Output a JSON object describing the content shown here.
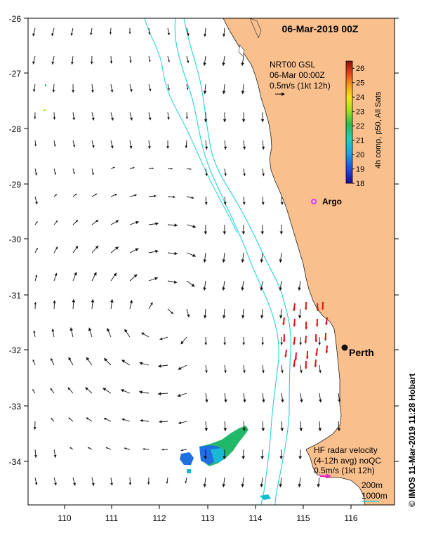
{
  "title": "06-Mar-2019 00Z",
  "credit": "© IMOS 11-Mar-2019 11:28 Hobart",
  "colors": {
    "land": "#f9c08e",
    "ocean": "#ffffff",
    "bathymetry": "#22d3d8",
    "hf_vector": "#e11414",
    "argo": "#e040e0",
    "city": "#111111",
    "hf_legend_arrow": "#ee22cc"
  },
  "axes": {
    "x_ticks": [
      "110",
      "111",
      "112",
      "113",
      "114",
      "115",
      "116"
    ],
    "y_ticks": [
      "-26",
      "-27",
      "-28",
      "-29",
      "-30",
      "-31",
      "-32",
      "-33",
      "-34"
    ]
  },
  "vector_legend": {
    "line1": "NRT00 GSL",
    "line2": "06-Mar 00:00Z",
    "line3": "0.5m/s (1kt 12h)"
  },
  "colorbar": {
    "label": "4h comp, p50, All Sats",
    "ticks": [
      "18",
      "19",
      "20",
      "21",
      "22",
      "23",
      "24",
      "25",
      "26"
    ],
    "min": 18,
    "max": 26.5
  },
  "hf_legend": {
    "line1": "HF radar velocity",
    "line2": "(4-12h avg) noQC",
    "line3": "0.5m/s (1kt 12h)"
  },
  "depth_legend": {
    "line1": "200m",
    "line2": "1000m"
  },
  "places": {
    "argo": "Argo",
    "city": "Perth"
  }
}
